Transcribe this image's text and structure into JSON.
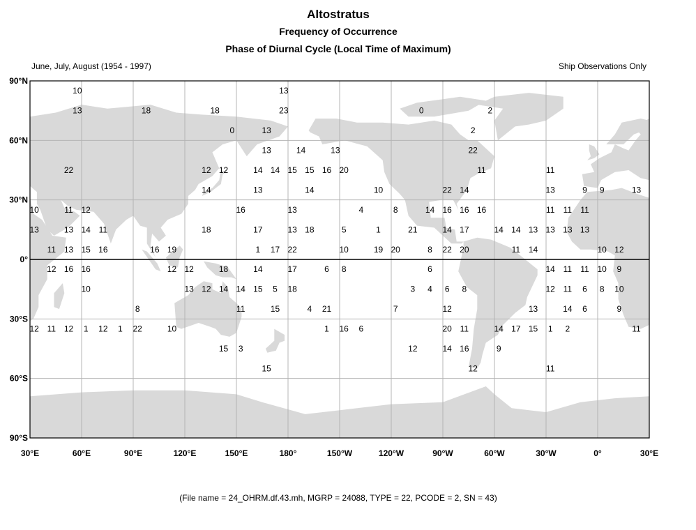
{
  "header": {
    "title": "Altostratus",
    "subtitle": "Frequency of Occurrence",
    "subtitle2": "Phase of Diurnal Cycle (Local Time of Maximum)",
    "season": "June, July, August (1954 - 1997)",
    "source_note": "Ship Observations Only"
  },
  "footer": {
    "file_info": "(File name = 24_OHRM.df.43.mh, MGRP = 24088, TYPE = 22, PCODE = 2, SN = 43)"
  },
  "colors": {
    "land": "#d9d9d9",
    "grid": "#b4b4b4",
    "equator": "#000000",
    "frame": "#000000"
  },
  "axes": {
    "lat_labels": [
      "90°N",
      "60°N",
      "30°N",
      "0°",
      "30°S",
      "60°S",
      "90°S"
    ],
    "lon_labels": [
      "30°E",
      "60°E",
      "90°E",
      "120°E",
      "150°E",
      "180°",
      "150°W",
      "120°W",
      "90°W",
      "60°W",
      "30°W",
      "0°",
      "30°E"
    ]
  },
  "chart_data": {
    "type": "map",
    "projection": "equirectangular",
    "lon_range": [
      30,
      390
    ],
    "lat_range": [
      -90,
      90
    ],
    "gridlines": true,
    "grid_spacing_deg": 30,
    "values": [
      {
        "lon": 57.5,
        "lat": 85,
        "v": "10"
      },
      {
        "lon": 57.5,
        "lat": 75,
        "v": "13"
      },
      {
        "lon": 97.5,
        "lat": 75,
        "v": "18"
      },
      {
        "lon": 137.5,
        "lat": 75,
        "v": "18"
      },
      {
        "lon": 177.5,
        "lat": 85,
        "v": "13"
      },
      {
        "lon": 177.5,
        "lat": 75,
        "v": "23"
      },
      {
        "lon": 257.5,
        "lat": 75,
        "v": "0"
      },
      {
        "lon": 297.5,
        "lat": 75,
        "v": "2"
      },
      {
        "lon": 147.5,
        "lat": 65,
        "v": "0"
      },
      {
        "lon": 167.5,
        "lat": 65,
        "v": "13"
      },
      {
        "lon": 287.5,
        "lat": 65,
        "v": "2"
      },
      {
        "lon": 167.5,
        "lat": 55,
        "v": "13"
      },
      {
        "lon": 187.5,
        "lat": 55,
        "v": "14"
      },
      {
        "lon": 207.5,
        "lat": 55,
        "v": "13"
      },
      {
        "lon": 287.5,
        "lat": 55,
        "v": "22"
      },
      {
        "lon": 52.5,
        "lat": 45,
        "v": "22"
      },
      {
        "lon": 132.5,
        "lat": 45,
        "v": "12"
      },
      {
        "lon": 142.5,
        "lat": 45,
        "v": "12"
      },
      {
        "lon": 162.5,
        "lat": 45,
        "v": "14"
      },
      {
        "lon": 172.5,
        "lat": 45,
        "v": "14"
      },
      {
        "lon": 182.5,
        "lat": 45,
        "v": "15"
      },
      {
        "lon": 192.5,
        "lat": 45,
        "v": "15"
      },
      {
        "lon": 202.5,
        "lat": 45,
        "v": "16"
      },
      {
        "lon": 212.5,
        "lat": 45,
        "v": "20"
      },
      {
        "lon": 292.5,
        "lat": 45,
        "v": "11"
      },
      {
        "lon": 332.5,
        "lat": 45,
        "v": "11"
      },
      {
        "lon": 132.5,
        "lat": 35,
        "v": "14"
      },
      {
        "lon": 162.5,
        "lat": 35,
        "v": "13"
      },
      {
        "lon": 192.5,
        "lat": 35,
        "v": "14"
      },
      {
        "lon": 232.5,
        "lat": 35,
        "v": "10"
      },
      {
        "lon": 272.5,
        "lat": 35,
        "v": "22"
      },
      {
        "lon": 282.5,
        "lat": 35,
        "v": "14"
      },
      {
        "lon": 332.5,
        "lat": 35,
        "v": "13"
      },
      {
        "lon": 352.5,
        "lat": 35,
        "v": "9"
      },
      {
        "lon": 362.5,
        "lat": 35,
        "v": "9"
      },
      {
        "lon": 382.5,
        "lat": 35,
        "v": "13"
      },
      {
        "lon": 32.5,
        "lat": 25,
        "v": "10"
      },
      {
        "lon": 52.5,
        "lat": 25,
        "v": "11"
      },
      {
        "lon": 62.5,
        "lat": 25,
        "v": "12"
      },
      {
        "lon": 152.5,
        "lat": 25,
        "v": "16"
      },
      {
        "lon": 182.5,
        "lat": 25,
        "v": "13"
      },
      {
        "lon": 222.5,
        "lat": 25,
        "v": "4"
      },
      {
        "lon": 242.5,
        "lat": 25,
        "v": "8"
      },
      {
        "lon": 262.5,
        "lat": 25,
        "v": "14"
      },
      {
        "lon": 272.5,
        "lat": 25,
        "v": "16"
      },
      {
        "lon": 282.5,
        "lat": 25,
        "v": "16"
      },
      {
        "lon": 292.5,
        "lat": 25,
        "v": "16"
      },
      {
        "lon": 332.5,
        "lat": 25,
        "v": "11"
      },
      {
        "lon": 342.5,
        "lat": 25,
        "v": "11"
      },
      {
        "lon": 352.5,
        "lat": 25,
        "v": "11"
      },
      {
        "lon": 32.5,
        "lat": 15,
        "v": "13"
      },
      {
        "lon": 52.5,
        "lat": 15,
        "v": "13"
      },
      {
        "lon": 62.5,
        "lat": 15,
        "v": "14"
      },
      {
        "lon": 72.5,
        "lat": 15,
        "v": "11"
      },
      {
        "lon": 132.5,
        "lat": 15,
        "v": "18"
      },
      {
        "lon": 162.5,
        "lat": 15,
        "v": "17"
      },
      {
        "lon": 182.5,
        "lat": 15,
        "v": "13"
      },
      {
        "lon": 192.5,
        "lat": 15,
        "v": "18"
      },
      {
        "lon": 212.5,
        "lat": 15,
        "v": "5"
      },
      {
        "lon": 232.5,
        "lat": 15,
        "v": "1"
      },
      {
        "lon": 252.5,
        "lat": 15,
        "v": "21"
      },
      {
        "lon": 272.5,
        "lat": 15,
        "v": "14"
      },
      {
        "lon": 282.5,
        "lat": 15,
        "v": "17"
      },
      {
        "lon": 302.5,
        "lat": 15,
        "v": "14"
      },
      {
        "lon": 312.5,
        "lat": 15,
        "v": "14"
      },
      {
        "lon": 322.5,
        "lat": 15,
        "v": "13"
      },
      {
        "lon": 332.5,
        "lat": 15,
        "v": "13"
      },
      {
        "lon": 342.5,
        "lat": 15,
        "v": "13"
      },
      {
        "lon": 352.5,
        "lat": 15,
        "v": "13"
      },
      {
        "lon": 42.5,
        "lat": 5,
        "v": "11"
      },
      {
        "lon": 52.5,
        "lat": 5,
        "v": "13"
      },
      {
        "lon": 62.5,
        "lat": 5,
        "v": "15"
      },
      {
        "lon": 72.5,
        "lat": 5,
        "v": "16"
      },
      {
        "lon": 102.5,
        "lat": 5,
        "v": "16"
      },
      {
        "lon": 112.5,
        "lat": 5,
        "v": "19"
      },
      {
        "lon": 162.5,
        "lat": 5,
        "v": "1"
      },
      {
        "lon": 172.5,
        "lat": 5,
        "v": "17"
      },
      {
        "lon": 182.5,
        "lat": 5,
        "v": "22"
      },
      {
        "lon": 212.5,
        "lat": 5,
        "v": "10"
      },
      {
        "lon": 232.5,
        "lat": 5,
        "v": "19"
      },
      {
        "lon": 242.5,
        "lat": 5,
        "v": "20"
      },
      {
        "lon": 262.5,
        "lat": 5,
        "v": "8"
      },
      {
        "lon": 272.5,
        "lat": 5,
        "v": "22"
      },
      {
        "lon": 282.5,
        "lat": 5,
        "v": "20"
      },
      {
        "lon": 312.5,
        "lat": 5,
        "v": "11"
      },
      {
        "lon": 322.5,
        "lat": 5,
        "v": "14"
      },
      {
        "lon": 362.5,
        "lat": 5,
        "v": "10"
      },
      {
        "lon": 372.5,
        "lat": 5,
        "v": "12"
      },
      {
        "lon": 42.5,
        "lat": -5,
        "v": "12"
      },
      {
        "lon": 52.5,
        "lat": -5,
        "v": "16"
      },
      {
        "lon": 62.5,
        "lat": -5,
        "v": "16"
      },
      {
        "lon": 112.5,
        "lat": -5,
        "v": "12"
      },
      {
        "lon": 122.5,
        "lat": -5,
        "v": "12"
      },
      {
        "lon": 142.5,
        "lat": -5,
        "v": "18"
      },
      {
        "lon": 162.5,
        "lat": -5,
        "v": "14"
      },
      {
        "lon": 182.5,
        "lat": -5,
        "v": "17"
      },
      {
        "lon": 202.5,
        "lat": -5,
        "v": "6"
      },
      {
        "lon": 212.5,
        "lat": -5,
        "v": "8"
      },
      {
        "lon": 262.5,
        "lat": -5,
        "v": "6"
      },
      {
        "lon": 332.5,
        "lat": -5,
        "v": "14"
      },
      {
        "lon": 342.5,
        "lat": -5,
        "v": "11"
      },
      {
        "lon": 352.5,
        "lat": -5,
        "v": "11"
      },
      {
        "lon": 362.5,
        "lat": -5,
        "v": "10"
      },
      {
        "lon": 372.5,
        "lat": -5,
        "v": "9"
      },
      {
        "lon": 62.5,
        "lat": -15,
        "v": "10"
      },
      {
        "lon": 122.5,
        "lat": -15,
        "v": "13"
      },
      {
        "lon": 132.5,
        "lat": -15,
        "v": "12"
      },
      {
        "lon": 142.5,
        "lat": -15,
        "v": "14"
      },
      {
        "lon": 152.5,
        "lat": -15,
        "v": "14"
      },
      {
        "lon": 162.5,
        "lat": -15,
        "v": "15"
      },
      {
        "lon": 172.5,
        "lat": -15,
        "v": "5"
      },
      {
        "lon": 182.5,
        "lat": -15,
        "v": "18"
      },
      {
        "lon": 252.5,
        "lat": -15,
        "v": "3"
      },
      {
        "lon": 262.5,
        "lat": -15,
        "v": "4"
      },
      {
        "lon": 272.5,
        "lat": -15,
        "v": "6"
      },
      {
        "lon": 282.5,
        "lat": -15,
        "v": "8"
      },
      {
        "lon": 332.5,
        "lat": -15,
        "v": "12"
      },
      {
        "lon": 342.5,
        "lat": -15,
        "v": "11"
      },
      {
        "lon": 352.5,
        "lat": -15,
        "v": "6"
      },
      {
        "lon": 362.5,
        "lat": -15,
        "v": "8"
      },
      {
        "lon": 372.5,
        "lat": -15,
        "v": "10"
      },
      {
        "lon": 92.5,
        "lat": -25,
        "v": "8"
      },
      {
        "lon": 152.5,
        "lat": -25,
        "v": "11"
      },
      {
        "lon": 172.5,
        "lat": -25,
        "v": "15"
      },
      {
        "lon": 192.5,
        "lat": -25,
        "v": "4"
      },
      {
        "lon": 202.5,
        "lat": -25,
        "v": "21"
      },
      {
        "lon": 242.5,
        "lat": -25,
        "v": "7"
      },
      {
        "lon": 272.5,
        "lat": -25,
        "v": "12"
      },
      {
        "lon": 322.5,
        "lat": -25,
        "v": "13"
      },
      {
        "lon": 342.5,
        "lat": -25,
        "v": "14"
      },
      {
        "lon": 352.5,
        "lat": -25,
        "v": "6"
      },
      {
        "lon": 372.5,
        "lat": -25,
        "v": "9"
      },
      {
        "lon": 32.5,
        "lat": -35,
        "v": "12"
      },
      {
        "lon": 42.5,
        "lat": -35,
        "v": "11"
      },
      {
        "lon": 52.5,
        "lat": -35,
        "v": "12"
      },
      {
        "lon": 62.5,
        "lat": -35,
        "v": "1"
      },
      {
        "lon": 72.5,
        "lat": -35,
        "v": "12"
      },
      {
        "lon": 82.5,
        "lat": -35,
        "v": "1"
      },
      {
        "lon": 92.5,
        "lat": -35,
        "v": "22"
      },
      {
        "lon": 112.5,
        "lat": -35,
        "v": "10"
      },
      {
        "lon": 202.5,
        "lat": -35,
        "v": "1"
      },
      {
        "lon": 212.5,
        "lat": -35,
        "v": "16"
      },
      {
        "lon": 222.5,
        "lat": -35,
        "v": "6"
      },
      {
        "lon": 272.5,
        "lat": -35,
        "v": "20"
      },
      {
        "lon": 282.5,
        "lat": -35,
        "v": "11"
      },
      {
        "lon": 302.5,
        "lat": -35,
        "v": "14"
      },
      {
        "lon": 312.5,
        "lat": -35,
        "v": "17"
      },
      {
        "lon": 322.5,
        "lat": -35,
        "v": "15"
      },
      {
        "lon": 332.5,
        "lat": -35,
        "v": "1"
      },
      {
        "lon": 342.5,
        "lat": -35,
        "v": "2"
      },
      {
        "lon": 382.5,
        "lat": -35,
        "v": "11"
      },
      {
        "lon": 142.5,
        "lat": -45,
        "v": "15"
      },
      {
        "lon": 152.5,
        "lat": -45,
        "v": "3"
      },
      {
        "lon": 252.5,
        "lat": -45,
        "v": "12"
      },
      {
        "lon": 272.5,
        "lat": -45,
        "v": "14"
      },
      {
        "lon": 282.5,
        "lat": -45,
        "v": "16"
      },
      {
        "lon": 302.5,
        "lat": -45,
        "v": "9"
      },
      {
        "lon": 287.5,
        "lat": -55,
        "v": "12"
      },
      {
        "lon": 167.5,
        "lat": -55,
        "v": "15"
      },
      {
        "lon": 332.5,
        "lat": -55,
        "v": "11"
      }
    ]
  }
}
